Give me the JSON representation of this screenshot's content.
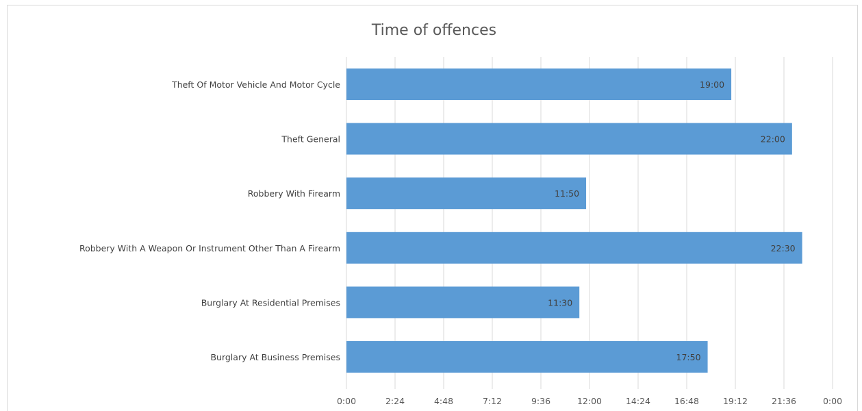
{
  "chart_data": {
    "type": "bar",
    "orientation": "horizontal",
    "title": "Time of offences",
    "categories": [
      "Theft Of Motor Vehicle And Motor Cycle",
      "Theft General",
      "Robbery With Firearm",
      "Robbery With A Weapon Or Instrument Other Than A Firearm",
      "Burglary At Residential Premises",
      "Burglary At Business Premises"
    ],
    "values": [
      19.0,
      22.0,
      11.8333,
      22.5,
      11.5,
      17.8333
    ],
    "data_labels": [
      "19:00",
      "22:00",
      "11:50",
      "22:30",
      "11:30",
      "17:50"
    ],
    "x_tick_labels": [
      "0:00",
      "2:24",
      "4:48",
      "7:12",
      "9:36",
      "12:00",
      "14:24",
      "16:48",
      "19:12",
      "21:36",
      "0:00"
    ],
    "xlim": [
      0,
      24
    ],
    "x_unit": "hours",
    "xlabel": "",
    "ylabel": "",
    "grid": true,
    "legend": "none",
    "bar_color": "#5b9bd5"
  }
}
